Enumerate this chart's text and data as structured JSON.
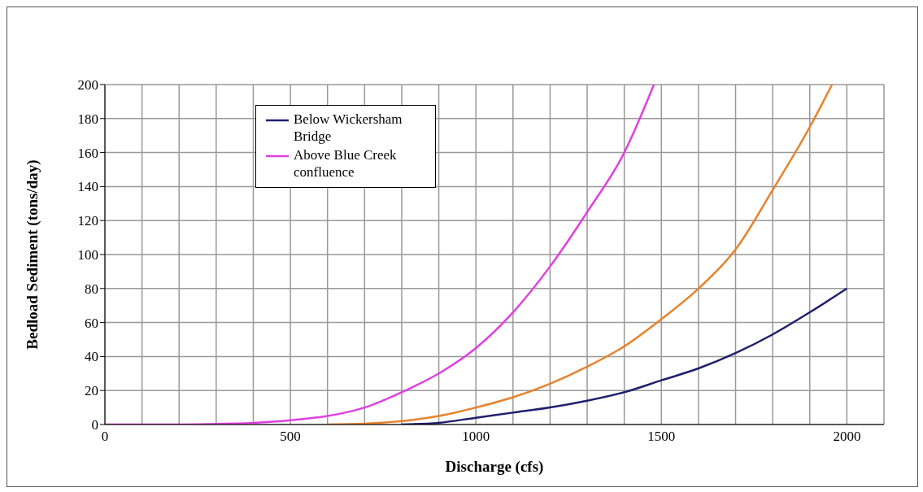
{
  "chart_data": {
    "type": "line",
    "xlabel": "Discharge (cfs)",
    "ylabel": "Bedload Sediment  (tons/day)",
    "xlim": [
      0,
      2100
    ],
    "ylim": [
      0,
      200
    ],
    "xticks": [
      0,
      {
        "value": 100,
        "label": null
      },
      {
        "value": 200,
        "label": null
      },
      {
        "value": 300,
        "label": null
      },
      {
        "value": 400,
        "label": null
      },
      500,
      {
        "value": 600,
        "label": null
      },
      {
        "value": 700,
        "label": null
      },
      {
        "value": 800,
        "label": null
      },
      {
        "value": 900,
        "label": null
      },
      1000,
      {
        "value": 1100,
        "label": null
      },
      {
        "value": 1200,
        "label": null
      },
      {
        "value": 1300,
        "label": null
      },
      {
        "value": 1400,
        "label": null
      },
      1500,
      {
        "value": 1600,
        "label": null
      },
      {
        "value": 1700,
        "label": null
      },
      {
        "value": 1800,
        "label": null
      },
      {
        "value": 1900,
        "label": null
      },
      2000,
      {
        "value": 2100,
        "label": null
      }
    ],
    "yticks": [
      0,
      20,
      40,
      60,
      80,
      100,
      120,
      140,
      160,
      180,
      200
    ],
    "grid": true,
    "legend": "top left",
    "marker": "none",
    "line_style": "solid",
    "series": [
      {
        "name": "Below Wickersham Bridge",
        "color": "#1f1f6e",
        "x": [
          800,
          900,
          1000,
          1100,
          1200,
          1300,
          1400,
          1500,
          1600,
          1700,
          1800,
          1900,
          2000
        ],
        "values": [
          0,
          1,
          4,
          7,
          10,
          14,
          19,
          26,
          33,
          42,
          53,
          66,
          80
        ]
      },
      {
        "name": "Above Blue Creek confluence",
        "color": "#e040e0",
        "x": [
          0,
          100,
          200,
          300,
          400,
          500,
          600,
          700,
          800,
          900,
          1000,
          1100,
          1200,
          1300,
          1400,
          1480
        ],
        "values": [
          0,
          0,
          0,
          0.3,
          1,
          2.5,
          5,
          10,
          19,
          30,
          45,
          66,
          93,
          125,
          160,
          200
        ]
      },
      {
        "color": "#e8822a",
        "x": [
          600,
          700,
          800,
          900,
          1000,
          1100,
          1200,
          1300,
          1400,
          1500,
          1600,
          1700,
          1800,
          1900,
          1960
        ],
        "values": [
          0,
          0.5,
          2,
          5,
          10,
          16,
          24,
          34,
          46,
          62,
          80,
          103,
          138,
          175,
          200
        ]
      }
    ]
  }
}
